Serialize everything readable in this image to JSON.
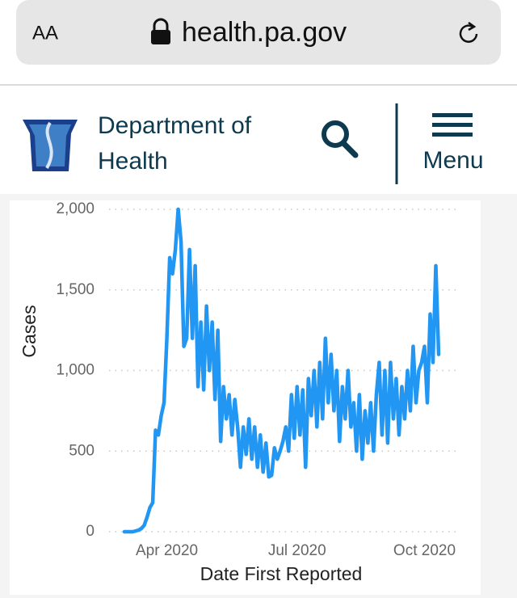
{
  "browser": {
    "text_size_button": "AA",
    "url": "health.pa.gov"
  },
  "header": {
    "title_lines": [
      "Department of",
      "Health"
    ],
    "menu_label": "Menu"
  },
  "chart_data": {
    "type": "line",
    "ylabel": "Cases",
    "xlabel": "Date First Reported",
    "categories": [
      null,
      null,
      null,
      null,
      null,
      null,
      null,
      null,
      null,
      null,
      null,
      null,
      null,
      null,
      null,
      "Apr 2020",
      null,
      null,
      null,
      null,
      null,
      null,
      null,
      null,
      null,
      null,
      null,
      null,
      null,
      null,
      null,
      null,
      null,
      null,
      null,
      null,
      null,
      null,
      null,
      null,
      null,
      null,
      null,
      null,
      null,
      null,
      null,
      null,
      null,
      null,
      null,
      null,
      null,
      null,
      null,
      null,
      null,
      null,
      null,
      null,
      null,
      "Jul 2020",
      null,
      null,
      null,
      null,
      null,
      null,
      null,
      null,
      null,
      null,
      null,
      null,
      null,
      null,
      null,
      null,
      null,
      null,
      null,
      null,
      null,
      null,
      null,
      null,
      null,
      null,
      null,
      null,
      null,
      null,
      null,
      null,
      null,
      null,
      null,
      null,
      null,
      null,
      null,
      null,
      null,
      null,
      null,
      null,
      "Oct 2020",
      null,
      null,
      null,
      null,
      null
    ],
    "series": [
      {
        "name": "Cases",
        "color": "#2196f3",
        "values": [
          0,
          0,
          0,
          0,
          5,
          10,
          20,
          40,
          90,
          150,
          180,
          630,
          600,
          720,
          800,
          1200,
          1700,
          1600,
          1750,
          2000,
          1800,
          1150,
          1200,
          1750,
          1200,
          1650,
          900,
          1300,
          880,
          1400,
          1000,
          1300,
          820,
          1250,
          560,
          900,
          700,
          850,
          600,
          820,
          650,
          400,
          650,
          480,
          700,
          450,
          650,
          400,
          600,
          370,
          550,
          340,
          350,
          520,
          450,
          500,
          560,
          650,
          500,
          850,
          580,
          900,
          600,
          880,
          400,
          950,
          720,
          1000,
          650,
          1050,
          700,
          1200,
          800,
          1100,
          750,
          1000,
          560,
          900,
          700,
          1000,
          650,
          800,
          500,
          850,
          450,
          750,
          550,
          800,
          500,
          850,
          1050,
          600,
          1000,
          550,
          1050,
          700,
          950,
          600,
          900,
          700,
          1000,
          750,
          1150,
          800,
          1000,
          1050,
          1150,
          800,
          1350,
          1050,
          1650,
          1100
        ]
      }
    ],
    "ylim": [
      0,
      2000
    ],
    "yticks": [
      0,
      500,
      {
        "value": 1000,
        "label": "1,000"
      },
      {
        "value": 1500,
        "label": "1,500"
      },
      {
        "value": 2000,
        "label": "2,000"
      }
    ],
    "grid": true
  }
}
